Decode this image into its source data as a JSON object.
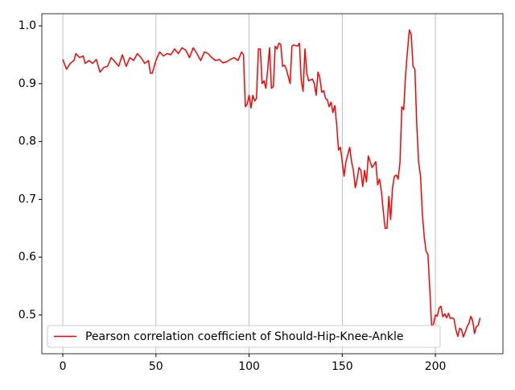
{
  "chart_data": {
    "type": "line",
    "x": [
      0,
      2,
      4,
      6,
      7,
      9,
      11,
      12,
      14,
      16,
      18,
      20,
      22,
      24,
      26,
      28,
      30,
      32,
      34,
      36,
      38,
      40,
      42,
      44,
      46,
      47,
      48,
      50,
      52,
      54,
      56,
      58,
      60,
      62,
      64,
      66,
      68,
      70,
      72,
      74,
      76,
      78,
      80,
      82,
      84,
      86,
      88,
      90,
      92,
      94,
      96,
      97,
      98,
      99,
      100,
      101,
      102,
      103,
      104,
      105,
      106,
      107,
      108,
      109,
      110,
      111,
      112,
      113,
      114,
      115,
      116,
      117,
      118,
      119,
      120,
      122,
      123,
      124,
      126,
      127,
      128,
      129,
      130,
      131,
      132,
      134,
      135,
      136,
      137,
      138,
      139,
      140,
      141,
      142,
      143,
      144,
      145,
      146,
      147,
      148,
      149,
      150,
      151,
      152,
      154,
      155,
      156,
      157,
      158,
      159,
      160,
      161,
      162,
      163,
      164,
      165,
      166,
      168,
      169,
      170,
      171,
      172,
      173,
      174,
      175,
      176,
      177,
      178,
      179,
      180,
      181,
      182,
      183,
      184,
      185,
      186,
      187,
      188,
      189,
      190,
      191,
      192,
      193,
      194,
      195,
      196,
      197,
      198,
      199,
      200,
      201,
      202,
      203,
      204,
      205,
      206,
      207,
      208,
      209,
      210,
      211,
      212,
      213,
      214,
      215,
      216,
      217,
      218,
      219,
      220,
      221,
      222,
      223,
      224
    ],
    "series": [
      {
        "name": "Pearson correlation coefficient of Should-Hip-Knee-Ankle",
        "color": "#ff0000",
        "values": [
          0.942,
          0.925,
          0.935,
          0.94,
          0.952,
          0.945,
          0.948,
          0.935,
          0.94,
          0.935,
          0.942,
          0.92,
          0.928,
          0.93,
          0.945,
          0.938,
          0.93,
          0.95,
          0.93,
          0.945,
          0.94,
          0.952,
          0.945,
          0.935,
          0.94,
          0.918,
          0.918,
          0.94,
          0.955,
          0.948,
          0.952,
          0.95,
          0.96,
          0.952,
          0.962,
          0.958,
          0.945,
          0.962,
          0.952,
          0.94,
          0.955,
          0.952,
          0.945,
          0.94,
          0.942,
          0.936,
          0.938,
          0.942,
          0.945,
          0.94,
          0.955,
          0.95,
          0.86,
          0.865,
          0.88,
          0.858,
          0.88,
          0.87,
          0.875,
          0.96,
          0.96,
          0.9,
          0.905,
          0.892,
          0.925,
          0.962,
          0.892,
          0.895,
          0.965,
          0.96,
          0.97,
          0.968,
          0.93,
          0.932,
          0.925,
          0.9,
          0.965,
          0.967,
          0.965,
          0.97,
          0.905,
          0.887,
          0.96,
          0.918,
          0.905,
          0.908,
          0.9,
          0.88,
          0.92,
          0.91,
          0.885,
          0.888,
          0.875,
          0.872,
          0.86,
          0.868,
          0.85,
          0.862,
          0.83,
          0.785,
          0.79,
          0.765,
          0.74,
          0.765,
          0.79,
          0.765,
          0.75,
          0.72,
          0.735,
          0.755,
          0.75,
          0.722,
          0.75,
          0.73,
          0.775,
          0.765,
          0.755,
          0.765,
          0.725,
          0.735,
          0.715,
          0.68,
          0.65,
          0.65,
          0.705,
          0.665,
          0.72,
          0.74,
          0.742,
          0.735,
          0.765,
          0.86,
          0.855,
          0.915,
          0.955,
          0.993,
          0.985,
          0.93,
          0.925,
          0.83,
          0.765,
          0.74,
          0.675,
          0.635,
          0.61,
          0.605,
          0.545,
          0.48,
          0.485,
          0.5,
          0.498,
          0.512,
          0.515,
          0.497,
          0.502,
          0.495,
          0.503,
          0.494,
          0.495,
          0.493,
          0.475,
          0.463,
          0.477,
          0.475,
          0.462,
          0.47,
          0.48,
          0.485,
          0.498,
          0.49,
          0.468,
          0.48,
          0.482,
          0.495
        ]
      }
    ],
    "xlim": [
      -11.25,
      236.25
    ],
    "xticks": [
      0,
      50,
      100,
      150,
      200
    ],
    "ylim": [
      0.433,
      1.021
    ],
    "yticks": [
      0.5,
      0.6,
      0.7,
      0.8,
      0.9,
      1.0
    ],
    "grid": "x",
    "legend": "lower left"
  }
}
